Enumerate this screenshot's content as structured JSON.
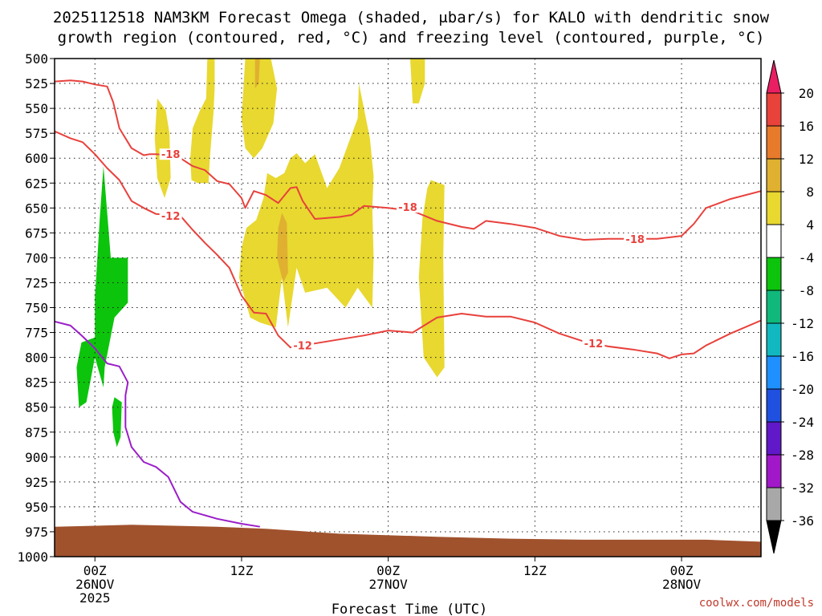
{
  "chart_data": {
    "type": "heatmap",
    "title_line1": "2025112518 NAM3KM Forecast Omega (shaded, μbar/s) for KALO with dendritic snow",
    "title_line2": "growth region (contoured, red, °C) and freezing level (contoured, purple, °C)",
    "xlabel": "Forecast Time (UTC)",
    "credit": "coolwx.com/models",
    "y_ticks": [
      "500",
      "525",
      "550",
      "575",
      "600",
      "625",
      "650",
      "675",
      "700",
      "725",
      "750",
      "775",
      "800",
      "825",
      "850",
      "875",
      "900",
      "925",
      "950",
      "975",
      "1000"
    ],
    "y_range": [
      500,
      1000
    ],
    "x_range_hours": [
      -3.3,
      54.5
    ],
    "x_ticks": [
      {
        "hour": 0,
        "line1": "00Z",
        "line2": "26NOV",
        "line3": "2025"
      },
      {
        "hour": 12,
        "line1": "12Z",
        "line2": "",
        "line3": ""
      },
      {
        "hour": 24,
        "line1": "00Z",
        "line2": "27NOV",
        "line3": ""
      },
      {
        "hour": 36,
        "line1": "12Z",
        "line2": "",
        "line3": ""
      },
      {
        "hour": 48,
        "line1": "00Z",
        "line2": "28NOV",
        "line3": ""
      }
    ],
    "grid": true,
    "colorbar": {
      "labels": [
        "20",
        "16",
        "12",
        "8",
        "4",
        "-4",
        "-8",
        "-12",
        "-16",
        "-20",
        "-24",
        "-28",
        "-32",
        "-36"
      ],
      "colors": [
        "#e91e63",
        "#e8423a",
        "#e87a2c",
        "#e0b030",
        "#e8d830",
        "#ffffff",
        "#0cc40c",
        "#10b87c",
        "#12b8c0",
        "#1e90ff",
        "#2050e0",
        "#6018c8",
        "#a018c8",
        "#a8a8a8",
        "#000000"
      ]
    },
    "contour_labels": {
      "m18": "-18",
      "m12": "-12"
    },
    "contours_red": [
      {
        "level": -18,
        "points": [
          [
            -3.3,
            523
          ],
          [
            -2,
            522
          ],
          [
            -1,
            523
          ],
          [
            0,
            526
          ],
          [
            1,
            528
          ],
          [
            1.5,
            544
          ],
          [
            2,
            570
          ],
          [
            3,
            590
          ],
          [
            4,
            597
          ],
          [
            4.5,
            596
          ],
          [
            5,
            596
          ],
          [
            6,
            597
          ],
          [
            7,
            600
          ],
          [
            8,
            608
          ],
          [
            9,
            612
          ],
          [
            10,
            623
          ],
          [
            11,
            626
          ],
          [
            12,
            640
          ],
          [
            12.3,
            650
          ],
          [
            13,
            633
          ],
          [
            14,
            637
          ],
          [
            15,
            645
          ],
          [
            16,
            630
          ],
          [
            16.5,
            629
          ],
          [
            17,
            643
          ],
          [
            18,
            661
          ],
          [
            20,
            659
          ],
          [
            21,
            657
          ],
          [
            22,
            648
          ],
          [
            24,
            650
          ],
          [
            26,
            653
          ],
          [
            28,
            663
          ],
          [
            30,
            669
          ],
          [
            31,
            671
          ],
          [
            32,
            663
          ],
          [
            34,
            666
          ],
          [
            36,
            670
          ],
          [
            38,
            678
          ],
          [
            40,
            682
          ],
          [
            42,
            681
          ],
          [
            44,
            681
          ],
          [
            46,
            681
          ],
          [
            48,
            678
          ],
          [
            49,
            666
          ],
          [
            50,
            650
          ],
          [
            52,
            641
          ],
          [
            54.5,
            633
          ]
        ]
      },
      {
        "level": -12,
        "points": [
          [
            -3.3,
            573
          ],
          [
            -2,
            580
          ],
          [
            -1,
            584
          ],
          [
            0,
            596
          ],
          [
            1,
            610
          ],
          [
            2,
            622
          ],
          [
            3,
            643
          ],
          [
            4,
            650
          ],
          [
            5,
            656
          ],
          [
            6,
            657
          ],
          [
            7,
            658
          ],
          [
            8,
            672
          ],
          [
            9,
            685
          ],
          [
            10,
            697
          ],
          [
            11,
            710
          ],
          [
            12,
            738
          ],
          [
            13,
            755
          ],
          [
            14,
            756
          ],
          [
            15,
            778
          ],
          [
            16,
            790
          ],
          [
            18,
            786
          ],
          [
            20,
            782
          ],
          [
            22,
            778
          ],
          [
            24,
            773
          ],
          [
            26,
            775
          ],
          [
            28,
            760
          ],
          [
            30,
            756
          ],
          [
            32,
            759
          ],
          [
            34,
            759
          ],
          [
            36,
            765
          ],
          [
            38,
            776
          ],
          [
            40,
            784
          ],
          [
            42,
            789
          ],
          [
            44,
            792
          ],
          [
            46,
            796
          ],
          [
            47,
            801
          ],
          [
            48,
            797
          ],
          [
            49,
            796
          ],
          [
            50,
            788
          ],
          [
            52,
            776
          ],
          [
            54.5,
            763
          ]
        ]
      }
    ],
    "contour_purple": {
      "level": 0,
      "points": [
        [
          -3.3,
          764
        ],
        [
          -2,
          768
        ],
        [
          -1,
          779
        ],
        [
          0,
          791
        ],
        [
          1,
          806
        ],
        [
          2,
          809
        ],
        [
          2.7,
          825
        ],
        [
          2.5,
          838
        ],
        [
          2.5,
          870
        ],
        [
          3,
          890
        ],
        [
          4,
          905
        ],
        [
          5,
          910
        ],
        [
          6,
          920
        ],
        [
          7,
          945
        ],
        [
          8,
          955
        ],
        [
          10,
          962
        ],
        [
          12,
          967
        ],
        [
          13.5,
          970
        ]
      ]
    },
    "terrain": {
      "color": "#a0522d",
      "points": [
        [
          -3.3,
          970
        ],
        [
          3,
          968
        ],
        [
          10,
          970
        ],
        [
          14,
          972
        ],
        [
          20,
          977
        ],
        [
          28,
          980
        ],
        [
          34,
          982
        ],
        [
          40,
          983
        ],
        [
          50,
          983
        ],
        [
          54.5,
          985
        ]
      ]
    },
    "omega_regions": [
      {
        "color": "#e8d830",
        "points": [
          [
            5.1,
            540
          ],
          [
            5.8,
            552
          ],
          [
            6.1,
            575
          ],
          [
            6.2,
            620
          ],
          [
            5.7,
            640
          ],
          [
            5.1,
            620
          ],
          [
            4.9,
            580
          ]
        ]
      },
      {
        "color": "#e8d830",
        "points": [
          [
            9.2,
            500
          ],
          [
            9.8,
            500
          ],
          [
            9.8,
            530
          ],
          [
            9.7,
            555
          ],
          [
            9.4,
            600
          ],
          [
            9.3,
            625
          ],
          [
            8.4,
            625
          ],
          [
            7.9,
            622
          ],
          [
            7.8,
            600
          ],
          [
            8,
            570
          ],
          [
            8.6,
            552
          ],
          [
            9.1,
            540
          ]
        ]
      },
      {
        "color": "#e8d830",
        "points": [
          [
            13.6,
            500
          ],
          [
            14.4,
            500
          ],
          [
            14.9,
            530
          ],
          [
            14.6,
            565
          ],
          [
            13.7,
            590
          ],
          [
            13,
            600
          ],
          [
            12.3,
            590
          ],
          [
            12,
            560
          ],
          [
            12.2,
            520
          ],
          [
            12.3,
            500
          ]
        ]
      },
      {
        "color": "#e0b030",
        "points": [
          [
            13.1,
            500
          ],
          [
            13.5,
            500
          ],
          [
            13.4,
            525
          ],
          [
            13.1,
            530
          ]
        ]
      },
      {
        "color": "#e8d830",
        "points": [
          [
            16.5,
            595
          ],
          [
            17.2,
            605
          ],
          [
            18,
            596
          ],
          [
            19,
            630
          ],
          [
            20,
            610
          ],
          [
            21.5,
            560
          ],
          [
            21.6,
            525
          ],
          [
            22.5,
            580
          ],
          [
            22.8,
            618
          ],
          [
            22.7,
            650
          ],
          [
            22.8,
            700
          ],
          [
            22.7,
            750
          ],
          [
            21.5,
            730
          ],
          [
            20.5,
            750
          ],
          [
            19,
            730
          ],
          [
            17.2,
            735
          ],
          [
            16.5,
            710
          ],
          [
            15.8,
            770
          ],
          [
            15.3,
            720
          ],
          [
            14.8,
            770
          ],
          [
            13.5,
            765
          ],
          [
            12.7,
            760
          ],
          [
            11.8,
            720
          ],
          [
            12,
            690
          ],
          [
            12.4,
            670
          ],
          [
            13.2,
            662
          ],
          [
            13.8,
            640
          ],
          [
            14.1,
            615
          ],
          [
            14.8,
            620
          ],
          [
            15.5,
            615
          ],
          [
            16,
            600
          ]
        ]
      },
      {
        "color": "#e0b030",
        "points": [
          [
            15.3,
            655
          ],
          [
            15.7,
            665
          ],
          [
            15.8,
            715
          ],
          [
            15.4,
            725
          ],
          [
            14.9,
            700
          ],
          [
            15,
            670
          ]
        ]
      },
      {
        "color": "#e8d830",
        "points": [
          [
            25.8,
            500
          ],
          [
            27,
            500
          ],
          [
            27,
            525
          ],
          [
            26.5,
            545
          ],
          [
            26,
            545
          ]
        ]
      },
      {
        "color": "#e8d830",
        "points": [
          [
            27.5,
            622
          ],
          [
            28.6,
            627
          ],
          [
            28.5,
            700
          ],
          [
            28.6,
            810
          ],
          [
            28,
            820
          ],
          [
            26.9,
            800
          ],
          [
            26.5,
            720
          ],
          [
            26.8,
            660
          ],
          [
            27.2,
            630
          ]
        ]
      },
      {
        "color": "#0cc40c",
        "points": [
          [
            0.7,
            608
          ],
          [
            1.3,
            700
          ],
          [
            2.7,
            700
          ],
          [
            2.7,
            745
          ],
          [
            1.6,
            760
          ],
          [
            0.8,
            810
          ],
          [
            0.7,
            830
          ],
          [
            0,
            800
          ],
          [
            -0.7,
            845
          ],
          [
            -1.3,
            850
          ],
          [
            -1.5,
            810
          ],
          [
            -1.1,
            785
          ],
          [
            0,
            780
          ],
          [
            0,
            740
          ],
          [
            0.2,
            700
          ],
          [
            0.4,
            660
          ]
        ]
      },
      {
        "color": "#0cc40c",
        "points": [
          [
            1.6,
            840
          ],
          [
            2.2,
            845
          ],
          [
            2.1,
            880
          ],
          [
            1.8,
            890
          ],
          [
            1.5,
            875
          ],
          [
            1.4,
            850
          ]
        ]
      }
    ]
  }
}
